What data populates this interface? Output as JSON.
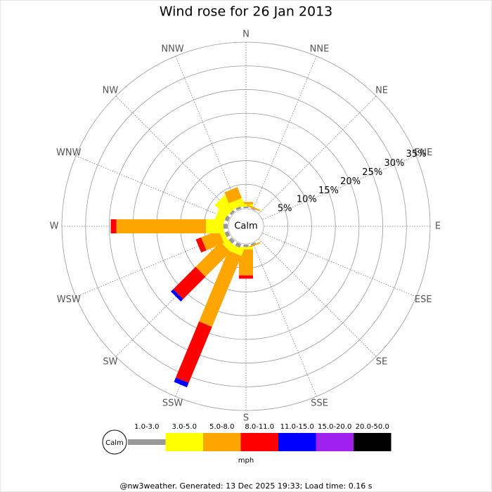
{
  "chart_data": {
    "type": "windrose",
    "title": "Wind rose for 26 Jan 2013",
    "directions": [
      "N",
      "NNE",
      "NE",
      "ENE",
      "E",
      "ESE",
      "SE",
      "SSE",
      "S",
      "SSW",
      "SW",
      "WSW",
      "W",
      "WNW",
      "NW",
      "NNW"
    ],
    "calm_label": "Calm",
    "rlim": [
      0,
      35
    ],
    "rticks": [
      {
        "value": 5,
        "label": "5%"
      },
      {
        "value": 10,
        "label": "10%"
      },
      {
        "value": 15,
        "label": "15%"
      },
      {
        "value": 20,
        "label": "20%"
      },
      {
        "value": 25,
        "label": "25%"
      },
      {
        "value": 30,
        "label": "30%"
      },
      {
        "value": 35,
        "label": "35%"
      }
    ],
    "series": [
      {
        "name": "1.0-3.0",
        "color": "#999999",
        "values": [
          0.3,
          0.2,
          0,
          0,
          0,
          0,
          0,
          0.3,
          0.5,
          0.8,
          0.8,
          0.8,
          0.9,
          0.8,
          0.5,
          0.5
        ]
      },
      {
        "name": "3.0-5.0",
        "color": "#ffff00",
        "values": [
          0.5,
          0,
          0,
          0,
          0,
          0,
          0,
          0,
          0.5,
          1.5,
          1.5,
          1,
          3.7,
          2,
          3.5,
          1.5
        ]
      },
      {
        "name": "5.0-8.0",
        "color": "#ffa500",
        "values": [
          0.5,
          0.3,
          0,
          0,
          0,
          0,
          0,
          0.3,
          5.5,
          16.2,
          7.4,
          4,
          18.9,
          0,
          0,
          2.5
        ]
      },
      {
        "name": "8.0-11.0",
        "color": "#ff0000",
        "values": [
          0,
          0,
          0,
          0,
          0,
          0,
          0,
          0,
          0.7,
          12.8,
          6.7,
          1.2,
          1.2,
          0,
          0,
          0
        ]
      },
      {
        "name": "11.0-15.0",
        "color": "#0000ff",
        "values": [
          0,
          0,
          0,
          0,
          0,
          0,
          0,
          0,
          0,
          1,
          0.7,
          0,
          0,
          0,
          0,
          0
        ]
      },
      {
        "name": "15.0-20.0",
        "color": "#a020f0",
        "values": [
          0,
          0,
          0,
          0,
          0,
          0,
          0,
          0,
          0,
          0,
          0,
          0,
          0,
          0,
          0,
          0
        ]
      },
      {
        "name": "20.0-50.0",
        "color": "#000000",
        "values": [
          0,
          0,
          0,
          0,
          0,
          0,
          0,
          0,
          0,
          0,
          0,
          0,
          0,
          0,
          0,
          0
        ]
      }
    ],
    "unit_label": "mph",
    "footer": "@nw3weather. Generated: 13 Dec 2025 19:33; Load time: 0.16 s"
  }
}
